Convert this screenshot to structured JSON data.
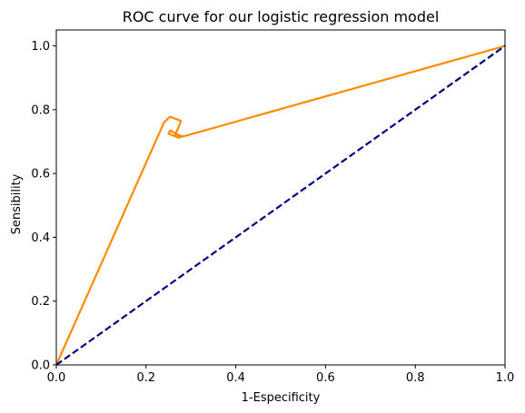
{
  "chart_data": {
    "type": "line",
    "title": "ROC curve for our logistic regression model",
    "xlabel": "1-Especificity",
    "ylabel": "Sensibility",
    "xlim": [
      0.0,
      1.0
    ],
    "ylim": [
      0.0,
      1.05
    ],
    "xticks": [
      0.0,
      0.2,
      0.4,
      0.6,
      0.8,
      1.0
    ],
    "yticks": [
      0.0,
      0.2,
      0.4,
      0.6,
      0.8,
      1.0
    ],
    "tick_format": "0.0",
    "grid": false,
    "series": [
      {
        "style": "solid",
        "color": "#ff8c00",
        "x": [
          0.0,
          0.24,
          0.253,
          0.278,
          0.265,
          0.28,
          0.273,
          0.25,
          0.254,
          0.28,
          1.0
        ],
        "y": [
          0.0,
          0.76,
          0.778,
          0.765,
          0.72,
          0.718,
          0.712,
          0.725,
          0.735,
          0.715,
          1.0
        ]
      },
      {
        "style": "dashed",
        "color": "#000080",
        "x": [
          0.0,
          1.0
        ],
        "y": [
          0.0,
          1.0
        ]
      }
    ]
  }
}
